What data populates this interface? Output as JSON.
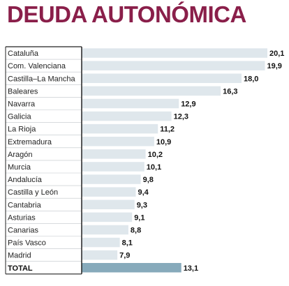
{
  "title": "DEUDA AUTONÓMICA",
  "colors": {
    "title": "#8a1f4a",
    "bar": "#dfe7ec",
    "total_bar": "#87aabb",
    "axis": "#222222"
  },
  "chart_data": {
    "type": "bar",
    "orientation": "horizontal",
    "title": "DEUDA AUTONÓMICA",
    "categories": [
      "Cataluña",
      "Com. Valenciana",
      "Castilla–La Mancha",
      "Baleares",
      "Navarra",
      "Galicia",
      "La Rioja",
      "Extremadura",
      "Aragón",
      "Murcia",
      "Andalucía",
      "Castilla y León",
      "Cantabria",
      "Asturias",
      "Canarias",
      "País Vasco",
      "Madrid",
      "TOTAL"
    ],
    "values": [
      20.1,
      19.9,
      18.0,
      16.3,
      12.9,
      12.3,
      11.2,
      10.9,
      10.2,
      10.1,
      9.8,
      9.4,
      9.3,
      9.1,
      8.8,
      8.1,
      7.9,
      13.1
    ],
    "value_labels": [
      "20,1",
      "19,9",
      "18,0",
      "16,3",
      "12,9",
      "12,3",
      "11,2",
      "10,9",
      "10,2",
      "10,1",
      "9,8",
      "9,4",
      "9,3",
      "9,1",
      "8,8",
      "8,1",
      "7,9",
      "13,1"
    ],
    "highlight_category": "TOTAL",
    "xlabel": "",
    "ylabel": "",
    "xlim": [
      5,
      20.1
    ],
    "grid": false,
    "legend": "none"
  }
}
